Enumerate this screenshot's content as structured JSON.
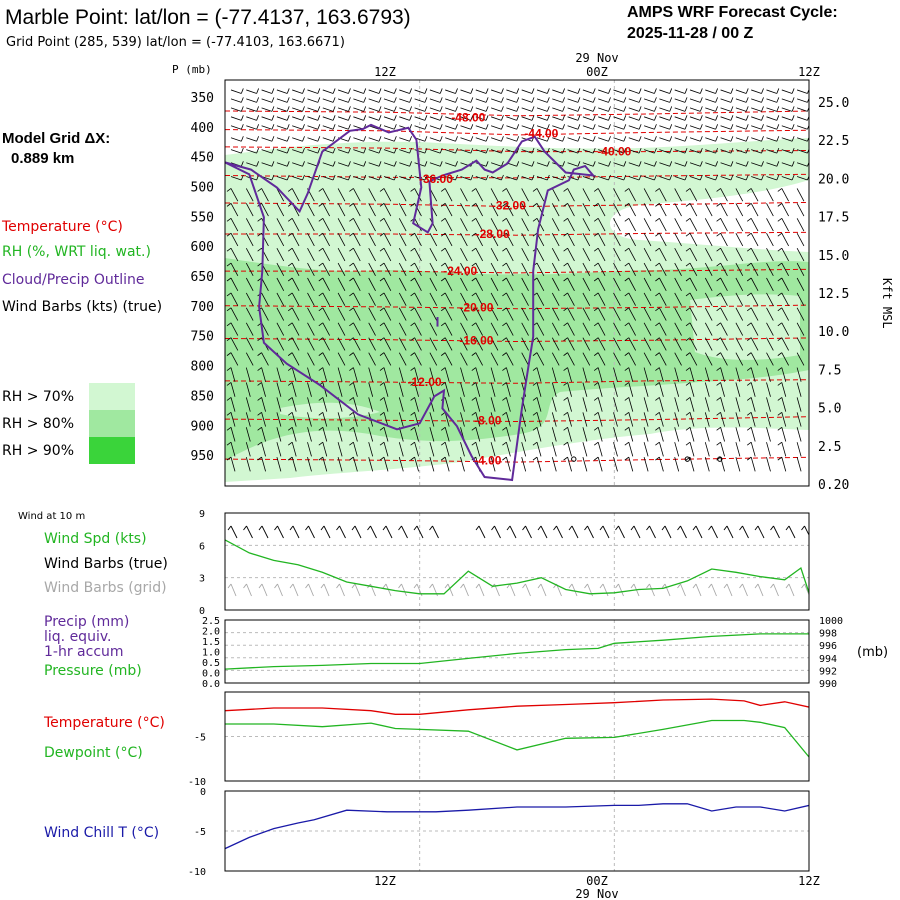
{
  "header": {
    "station_title": "Marble Point:  lat/lon = (-77.4137, 163.6793)",
    "grid_point": "Grid Point (285, 539) lat/lon = (-77.4103, 163.6671)",
    "model_name": "AMPS WRF Forecast Cycle:",
    "cycle": "2025-11-28 / 00  Z",
    "grid_dx_label": "Model Grid ΔX:",
    "grid_dx_value": "0.889 km"
  },
  "colors": {
    "temperature": "#e00000",
    "rh": "#22b522",
    "cloud": "#602a9a",
    "wind": "#000000",
    "wind_grid": "#a8a8a8",
    "precip": "#602a9a",
    "pressure": "#22b522",
    "wind_chill": "#1a1aa8",
    "rh70": "#d2f7d2",
    "rh80": "#a0e8a0",
    "rh90": "#3ad43a"
  },
  "time_axis": {
    "top_date": "29 Nov",
    "bottom_date": "29 Nov",
    "labels": [
      "12Z",
      "00Z",
      "12Z"
    ]
  },
  "legend": {
    "temperature": "Temperature (°C)",
    "rh": "RH (%, WRT liq. wat.)",
    "cloud": "Cloud/Precip Outline",
    "wind": "Wind Barbs (kts) (true)",
    "rh70": "RH > 70%",
    "rh80": "RH > 80%",
    "rh90": "RH > 90%"
  },
  "chart_data": [
    {
      "type": "heatmap",
      "name": "cross-section",
      "left_axis_title": "P (mb)",
      "right_axis_title": "Kft MSL",
      "pressure_levels": [
        350,
        400,
        450,
        500,
        550,
        600,
        650,
        700,
        750,
        800,
        850,
        900,
        950
      ],
      "height_ticks": [
        "25.0",
        "22.5",
        "20.0",
        "17.5",
        "15.0",
        "12.5",
        "10.0",
        "7.5",
        "5.0",
        "2.5",
        "0.20"
      ],
      "ylim_mb": [
        320,
        1000
      ],
      "x_hours": [
        0,
        36
      ],
      "isotherm_labels": [
        "-48.00",
        "-44.00",
        "-40.00",
        "-36.00",
        "-32.00",
        "-28.00",
        "-24.00",
        "-20.00",
        "-16.00",
        "-12.00",
        "-8.00",
        "-4.00"
      ],
      "isotherms": [
        {
          "label": "-48.00",
          "label_at": [
            15.0,
            383
          ],
          "points": [
            [
              0,
              372
            ],
            [
              10,
              374
            ],
            [
              18,
              380
            ],
            [
              26,
              377
            ],
            [
              36,
              372
            ]
          ]
        },
        {
          "label": "-44.00",
          "label_at": [
            19.5,
            410
          ],
          "points": [
            [
              0,
              403
            ],
            [
              10,
              405
            ],
            [
              18,
              412
            ],
            [
              26,
              408
            ],
            [
              36,
              404
            ]
          ]
        },
        {
          "label": "-40.00",
          "label_at": [
            24.0,
            440
          ],
          "points": [
            [
              0,
              432
            ],
            [
              10,
              434
            ],
            [
              18,
              440
            ],
            [
              26,
              440
            ],
            [
              36,
              438
            ]
          ]
        },
        {
          "label": "-36.00",
          "label_at": [
            13.0,
            486
          ],
          "points": [
            [
              0,
              480
            ],
            [
              10,
              483
            ],
            [
              18,
              484
            ],
            [
              26,
              481
            ],
            [
              36,
              478
            ]
          ]
        },
        {
          "label": "-32.00",
          "label_at": [
            17.5,
            530
          ],
          "points": [
            [
              0,
              526
            ],
            [
              10,
              528
            ],
            [
              18,
              532
            ],
            [
              26,
              529
            ],
            [
              36,
              525
            ]
          ]
        },
        {
          "label": "-28.00",
          "label_at": [
            16.5,
            578
          ],
          "points": [
            [
              0,
              578
            ],
            [
              10,
              578
            ],
            [
              18,
              580
            ],
            [
              26,
              577
            ],
            [
              36,
              575
            ]
          ]
        },
        {
          "label": "-24.00",
          "label_at": [
            14.5,
            640
          ],
          "points": [
            [
              0,
              640
            ],
            [
              10,
              640
            ],
            [
              18,
              643
            ],
            [
              26,
              640
            ],
            [
              36,
              637
            ]
          ]
        },
        {
          "label": "-20.00",
          "label_at": [
            15.5,
            701
          ],
          "points": [
            [
              0,
              698
            ],
            [
              10,
              700
            ],
            [
              18,
              703
            ],
            [
              26,
              701
            ],
            [
              36,
              697
            ]
          ]
        },
        {
          "label": "-16.00",
          "label_at": [
            15.5,
            756
          ],
          "points": [
            [
              0,
              753
            ],
            [
              10,
              755
            ],
            [
              18,
              758
            ],
            [
              26,
              756
            ],
            [
              36,
              752
            ]
          ]
        },
        {
          "label": "-12.00",
          "label_at": [
            12.3,
            826
          ],
          "points": [
            [
              0,
              824
            ],
            [
              10,
              826
            ],
            [
              18,
              828
            ],
            [
              26,
              824
            ],
            [
              36,
              822
            ]
          ]
        },
        {
          "label": "-8.00",
          "label_at": [
            16.2,
            890
          ],
          "points": [
            [
              0,
              888
            ],
            [
              10,
              890
            ],
            [
              18,
              892
            ],
            [
              26,
              889
            ],
            [
              36,
              884
            ]
          ]
        },
        {
          "label": "-4.00",
          "label_at": [
            16.2,
            957
          ],
          "points": [
            [
              0,
              955
            ],
            [
              10,
              957
            ],
            [
              18,
              960
            ],
            [
              26,
              956
            ],
            [
              36,
              952
            ]
          ]
        }
      ],
      "cloud_outline": [
        [
          0,
          458
        ],
        [
          1.5,
          478
        ],
        [
          2.4,
          550
        ],
        [
          2.3,
          640
        ],
        [
          2.1,
          700
        ],
        [
          2.4,
          760
        ],
        [
          3.8,
          795
        ],
        [
          5.8,
          830
        ],
        [
          8.2,
          880
        ],
        [
          10.6,
          905
        ],
        [
          12.0,
          895
        ],
        [
          12.9,
          850
        ],
        [
          13.5,
          840
        ],
        [
          13.4,
          870
        ],
        [
          14.3,
          900
        ],
        [
          15.2,
          950
        ],
        [
          16.0,
          985
        ],
        [
          17.7,
          990
        ],
        [
          18.3,
          870
        ],
        [
          18.7,
          800
        ],
        [
          19.0,
          750
        ],
        [
          19.0,
          640
        ],
        [
          19.3,
          570
        ],
        [
          19.9,
          505
        ],
        [
          21.2,
          488
        ],
        [
          21.5,
          470
        ],
        [
          22.2,
          464
        ],
        [
          22.7,
          480
        ],
        [
          21.0,
          475
        ],
        [
          19.7,
          440
        ],
        [
          19.1,
          415
        ],
        [
          18.3,
          423
        ],
        [
          17.4,
          460
        ],
        [
          16.5,
          475
        ],
        [
          16.0,
          470
        ],
        [
          15.5,
          455
        ],
        [
          14.6,
          470
        ],
        [
          13.4,
          480
        ],
        [
          12.6,
          490
        ],
        [
          12.8,
          560
        ],
        [
          12.5,
          575
        ],
        [
          11.6,
          560
        ],
        [
          12.1,
          500
        ],
        [
          11.8,
          420
        ],
        [
          11.3,
          400
        ],
        [
          10.1,
          408
        ],
        [
          9.0,
          395
        ],
        [
          8.5,
          402
        ],
        [
          7.7,
          405
        ],
        [
          6.0,
          440
        ],
        [
          5.1,
          510
        ],
        [
          4.6,
          540
        ],
        [
          3.2,
          500
        ],
        [
          1.6,
          470
        ],
        [
          0,
          458
        ]
      ],
      "pressure_mark": {
        "x_hour": 13.1,
        "from_mb": 717,
        "to_mb": 733
      }
    },
    {
      "type": "line",
      "name": "surface-wind",
      "panel_title": "Wind at 10 m",
      "labels": [
        "Wind Spd (kts)",
        "Wind Barbs (true)",
        "Wind Barbs (grid)"
      ],
      "y_ticks": [
        "9",
        "6",
        "3",
        "0"
      ],
      "ylim": [
        0,
        9
      ],
      "x": [
        0,
        1.5,
        3,
        4.5,
        6,
        7.5,
        9,
        10.5,
        12,
        13.5,
        15,
        16.5,
        18,
        19.5,
        21,
        22.5,
        24,
        25.5,
        27,
        28.5,
        30,
        31.5,
        33,
        34.5,
        35.5,
        36
      ],
      "series": [
        {
          "name": "Wind Spd (kts)",
          "values": [
            6.5,
            5.3,
            4.6,
            4.2,
            3.5,
            2.6,
            2.2,
            1.8,
            1.5,
            1.5,
            3.6,
            2.2,
            2.5,
            3.0,
            1.9,
            1.5,
            1.6,
            1.9,
            2.0,
            2.7,
            3.8,
            3.5,
            3.1,
            2.8,
            3.9,
            1.6
          ]
        }
      ]
    },
    {
      "type": "line",
      "name": "precip-pressure",
      "labels": [
        "Precip (mm)",
        "liq. equiv.",
        "1-hr accum",
        "Pressure (mb)"
      ],
      "left_ticks": [
        "2.5",
        "2.0",
        "1.5",
        "1.0",
        "0.5",
        "0.0",
        "0.0"
      ],
      "right_ticks": [
        "1000",
        "998",
        "996",
        "994",
        "992",
        "990"
      ],
      "right_unit": "(mb)",
      "ylim_precip": [
        0,
        2.5
      ],
      "ylim_pressure": [
        990,
        1000
      ],
      "x": [
        0,
        3,
        6,
        9,
        12,
        15,
        18,
        21,
        23,
        24,
        27,
        30,
        33,
        36
      ],
      "series": [
        {
          "name": "Pressure (mb)",
          "values": [
            992.2,
            992.6,
            992.8,
            993.1,
            993.1,
            993.9,
            994.7,
            995.3,
            995.5,
            996.3,
            996.8,
            997.4,
            997.8,
            997.8
          ]
        }
      ]
    },
    {
      "type": "line",
      "name": "temperature-dewpoint",
      "labels": [
        "Temperature (°C)",
        "Dewpoint (°C)"
      ],
      "y_ticks": [
        "-5",
        "-10"
      ],
      "ylim": [
        -10,
        0
      ],
      "x": [
        0,
        3,
        6,
        9,
        10.5,
        12,
        15,
        18,
        21,
        24,
        27,
        30,
        32,
        33,
        34.5,
        36
      ],
      "series": [
        {
          "name": "Temperature (°C)",
          "values": [
            -2.1,
            -1.8,
            -1.8,
            -2.1,
            -2.5,
            -2.5,
            -2.0,
            -1.6,
            -1.4,
            -1.2,
            -0.9,
            -0.8,
            -1.0,
            -1.5,
            -1.1,
            -1.7
          ]
        },
        {
          "name": "Dewpoint (°C)",
          "values": [
            -3.6,
            -3.6,
            -3.9,
            -3.5,
            -4.1,
            -4.2,
            -4.4,
            -6.5,
            -5.2,
            -5.1,
            -4.2,
            -3.2,
            -3.2,
            -3.4,
            -4.0,
            -7.3
          ]
        }
      ]
    },
    {
      "type": "line",
      "name": "wind-chill",
      "labels": [
        "Wind Chill T (°C)"
      ],
      "y_ticks": [
        "0",
        "-5",
        "-10"
      ],
      "ylim": [
        -10,
        0
      ],
      "x": [
        0,
        1.5,
        3,
        4.5,
        5.5,
        7.5,
        10,
        12,
        13,
        15,
        18,
        21,
        24,
        25.5,
        27,
        28.5,
        30,
        31.5,
        33,
        34.5,
        36
      ],
      "series": [
        {
          "name": "Wind Chill T (°C)",
          "values": [
            -7.2,
            -5.8,
            -4.7,
            -4.0,
            -3.6,
            -2.4,
            -2.6,
            -2.6,
            -2.6,
            -2.4,
            -2.0,
            -2.0,
            -1.8,
            -1.8,
            -1.6,
            -1.6,
            -2.5,
            -2.0,
            -2.0,
            -2.5,
            -1.8
          ]
        }
      ]
    }
  ]
}
